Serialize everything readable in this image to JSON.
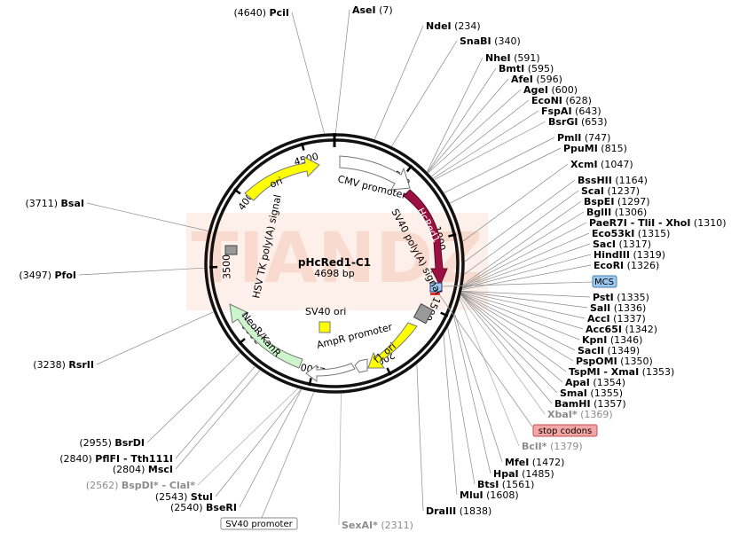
{
  "plasmid": {
    "name": "pHcRed1-C1",
    "size_label": "4698 bp",
    "total_bp": 4698
  },
  "watermark": "TIANDZ",
  "ticks": [
    {
      "bp": 500,
      "label": "500"
    },
    {
      "bp": 1000,
      "label": "1000"
    },
    {
      "bp": 1500,
      "label": "1500"
    },
    {
      "bp": 2000,
      "label": "2000"
    },
    {
      "bp": 2500,
      "label": "2500"
    },
    {
      "bp": 3000,
      "label": "3000"
    },
    {
      "bp": 3500,
      "label": "3500"
    },
    {
      "bp": 4000,
      "label": "4000"
    },
    {
      "bp": 4500,
      "label": "4500"
    }
  ],
  "features": [
    {
      "name": "CMV promoter",
      "label": "CMV promoter",
      "start": 60,
      "end": 640,
      "color": "#ffffff",
      "ring": "inner"
    },
    {
      "name": "HcRed1",
      "label": "HcRed1",
      "start": 640,
      "end": 1330,
      "color": "#9b1040",
      "ring": "outer"
    },
    {
      "name": "f1 ori",
      "label": "f1 ori",
      "start": 1700,
      "end": 2080,
      "color": "#ffff00",
      "ring": "inner"
    },
    {
      "name": "AmpR promoter",
      "label": "AmpR promoter",
      "start": 2380,
      "end": 2180,
      "color": "#ffffff",
      "ring": "inner"
    },
    {
      "name": "NeoR/KanR",
      "label": "NeoR/KanR",
      "start": 3380,
      "end": 2620,
      "color": "#ccf5cc",
      "ring": "inner"
    },
    {
      "name": "ori",
      "label": "ori",
      "start": 4250,
      "end": 4670,
      "color": "#ffff00",
      "ring": "inner"
    }
  ],
  "inner_labels": {
    "sv40_polyA": "SV40 poly(A) signal",
    "hsv_tk_polyA": "HSV TK poly(A) signal",
    "sv40_ori": "SV40 ori"
  },
  "callouts": {
    "mcs": "MCS",
    "stop_codons": "stop codons",
    "sv40_promoter": "SV40 promoter"
  },
  "sites_right": [
    {
      "name": "AseI",
      "pos": "(7)"
    },
    {
      "name": "NdeI",
      "pos": "(234)"
    },
    {
      "name": "SnaBI",
      "pos": "(340)"
    },
    {
      "name": "NheI",
      "pos": "(591)"
    },
    {
      "name": "BmtI",
      "pos": "(595)"
    },
    {
      "name": "AfeI",
      "pos": "(596)"
    },
    {
      "name": "AgeI",
      "pos": "(600)"
    },
    {
      "name": "EcoNI",
      "pos": "(628)"
    },
    {
      "name": "FspAI",
      "pos": "(643)"
    },
    {
      "name": "BsrGI",
      "pos": "(653)"
    },
    {
      "name": "PmlI",
      "pos": "(747)"
    },
    {
      "name": "PpuMI",
      "pos": "(815)"
    },
    {
      "name": "XcmI",
      "pos": "(1047)"
    },
    {
      "name": "BssHII",
      "pos": "(1164)"
    },
    {
      "name": "ScaI",
      "pos": "(1237)"
    },
    {
      "name": "BspEI",
      "pos": "(1297)"
    },
    {
      "name": "BglII",
      "pos": "(1306)"
    },
    {
      "name": "PaeR7I - TliI - XhoI",
      "pos": "(1310)"
    },
    {
      "name": "Eco53kI",
      "pos": "(1315)"
    },
    {
      "name": "SacI",
      "pos": "(1317)"
    },
    {
      "name": "HindIII",
      "pos": "(1319)"
    },
    {
      "name": "EcoRI",
      "pos": "(1326)"
    },
    {
      "name": "PstI",
      "pos": "(1335)"
    },
    {
      "name": "SalI",
      "pos": "(1336)"
    },
    {
      "name": "AccI",
      "pos": "(1337)"
    },
    {
      "name": "Acc65I",
      "pos": "(1342)"
    },
    {
      "name": "KpnI",
      "pos": "(1346)"
    },
    {
      "name": "SacII",
      "pos": "(1349)"
    },
    {
      "name": "PspOMI",
      "pos": "(1350)"
    },
    {
      "name": "TspMI - XmaI",
      "pos": "(1353)"
    },
    {
      "name": "ApaI",
      "pos": "(1354)"
    },
    {
      "name": "SmaI",
      "pos": "(1355)"
    },
    {
      "name": "BamHI",
      "pos": "(1357)"
    },
    {
      "name": "XbaI*",
      "pos": "(1369)"
    },
    {
      "name": "BclI*",
      "pos": "(1379)"
    },
    {
      "name": "MfeI",
      "pos": "(1472)"
    },
    {
      "name": "HpaI",
      "pos": "(1485)"
    },
    {
      "name": "BtsI",
      "pos": "(1561)"
    },
    {
      "name": "MluI",
      "pos": "(1608)"
    },
    {
      "name": "DraIII",
      "pos": "(1838)"
    },
    {
      "name": "SexAI*",
      "pos": "(2311)"
    }
  ],
  "sites_left": [
    {
      "name": "PciI",
      "pos": "(4640)"
    },
    {
      "name": "BsaI",
      "pos": "(3711)"
    },
    {
      "name": "PfoI",
      "pos": "(3497)"
    },
    {
      "name": "RsrII",
      "pos": "(3238)"
    },
    {
      "name": "BsrDI",
      "pos": "(2955)"
    },
    {
      "name": "PflFI - Tth111I",
      "pos": "(2840)"
    },
    {
      "name": "MscI",
      "pos": "(2804)"
    },
    {
      "name": "BspDI* - ClaI*",
      "pos": "(2562)"
    },
    {
      "name": "StuI",
      "pos": "(2543)"
    },
    {
      "name": "BseRI",
      "pos": "(2540)"
    }
  ]
}
